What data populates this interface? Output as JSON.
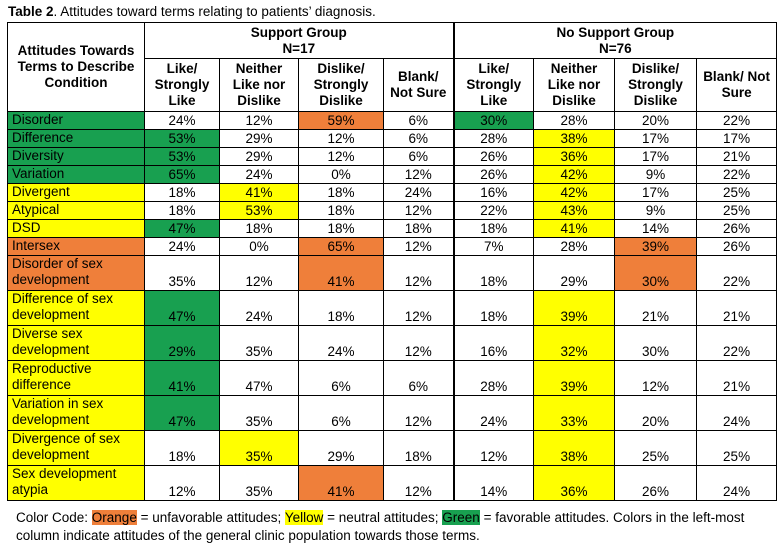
{
  "caption": {
    "label": "Table 2",
    "text": ". Attitudes toward terms relating to patients’ diagnosis."
  },
  "header": {
    "corner": "Attitudes Towards Terms to Describe Condition",
    "support_group": "Support Group",
    "support_n": "N=17",
    "no_support_group": "No Support Group",
    "no_support_n": "N=76",
    "columns": [
      "Like/ Strongly Like",
      "Neither Like nor Dislike",
      "Dislike/ Strongly Dislike",
      "Blank/ Not Sure",
      "Like/ Strongly Like",
      "Neither Like nor Dislike",
      "Dislike/ Strongly Dislike",
      "Blank/ Not Sure"
    ]
  },
  "colors": {
    "green": "#18a050",
    "yellow": "#ffff00",
    "orange": "#ef7f3a"
  },
  "rows": [
    {
      "term": "Disorder",
      "tc": "g",
      "v": [
        "24%",
        "12%",
        "59%",
        "6%",
        "30%",
        "28%",
        "20%",
        "22%"
      ],
      "c": [
        "",
        "",
        "o",
        "",
        "g",
        "",
        "",
        ""
      ]
    },
    {
      "term": "Difference",
      "tc": "g",
      "v": [
        "53%",
        "29%",
        "12%",
        "6%",
        "28%",
        "38%",
        "17%",
        "17%"
      ],
      "c": [
        "g",
        "",
        "",
        "",
        "",
        "y",
        "",
        ""
      ]
    },
    {
      "term": "Diversity",
      "tc": "g",
      "v": [
        "53%",
        "29%",
        "12%",
        "6%",
        "26%",
        "36%",
        "17%",
        "21%"
      ],
      "c": [
        "g",
        "",
        "",
        "",
        "",
        "y",
        "",
        ""
      ]
    },
    {
      "term": "Variation",
      "tc": "g",
      "v": [
        "65%",
        "24%",
        "0%",
        "12%",
        "26%",
        "42%",
        "9%",
        "22%"
      ],
      "c": [
        "g",
        "",
        "",
        "",
        "",
        "y",
        "",
        ""
      ]
    },
    {
      "term": "Divergent",
      "tc": "y",
      "v": [
        "18%",
        "41%",
        "18%",
        "24%",
        "16%",
        "42%",
        "17%",
        "25%"
      ],
      "c": [
        "",
        "y",
        "",
        "",
        "",
        "y",
        "",
        ""
      ]
    },
    {
      "term": "Atypical",
      "tc": "y",
      "v": [
        "18%",
        "53%",
        "18%",
        "12%",
        "22%",
        "43%",
        "9%",
        "25%"
      ],
      "c": [
        "",
        "y",
        "",
        "",
        "",
        "y",
        "",
        ""
      ]
    },
    {
      "term": "DSD",
      "tc": "y",
      "v": [
        "47%",
        "18%",
        "18%",
        "18%",
        "18%",
        "41%",
        "14%",
        "26%"
      ],
      "c": [
        "g",
        "",
        "",
        "",
        "",
        "y",
        "",
        ""
      ]
    },
    {
      "term": "Intersex",
      "tc": "o",
      "v": [
        "24%",
        "0%",
        "65%",
        "12%",
        "7%",
        "28%",
        "39%",
        "26%"
      ],
      "c": [
        "",
        "",
        "o",
        "",
        "",
        "",
        "o",
        ""
      ]
    },
    {
      "term": "Disorder of sex development",
      "tc": "o",
      "v": [
        "35%",
        "12%",
        "41%",
        "12%",
        "18%",
        "29%",
        "30%",
        "22%"
      ],
      "c": [
        "",
        "",
        "o",
        "",
        "",
        "",
        "o",
        ""
      ]
    },
    {
      "term": "Difference of sex development",
      "tc": "y",
      "v": [
        "47%",
        "24%",
        "18%",
        "12%",
        "18%",
        "39%",
        "21%",
        "21%"
      ],
      "c": [
        "g",
        "",
        "",
        "",
        "",
        "y",
        "",
        ""
      ]
    },
    {
      "term": "Diverse sex development",
      "tc": "y",
      "v": [
        "29%",
        "35%",
        "24%",
        "12%",
        "16%",
        "32%",
        "30%",
        "22%"
      ],
      "c": [
        "g",
        "",
        "",
        "",
        "",
        "y",
        "",
        ""
      ]
    },
    {
      "term": "Reproductive difference",
      "tc": "y",
      "v": [
        "41%",
        "47%",
        "6%",
        "6%",
        "28%",
        "39%",
        "12%",
        "21%"
      ],
      "c": [
        "g",
        "",
        "",
        "",
        "",
        "y",
        "",
        ""
      ]
    },
    {
      "term": "Variation in sex development",
      "tc": "y",
      "v": [
        "47%",
        "35%",
        "6%",
        "12%",
        "24%",
        "33%",
        "20%",
        "24%"
      ],
      "c": [
        "g",
        "",
        "",
        "",
        "",
        "y",
        "",
        ""
      ]
    },
    {
      "term": "Divergence of sex development",
      "tc": "y",
      "v": [
        "18%",
        "35%",
        "29%",
        "18%",
        "12%",
        "38%",
        "25%",
        "25%"
      ],
      "c": [
        "",
        "y",
        "",
        "",
        "",
        "y",
        "",
        ""
      ]
    },
    {
      "term": "Sex development atypia",
      "tc": "y",
      "v": [
        "12%",
        "35%",
        "41%",
        "12%",
        "14%",
        "36%",
        "26%",
        "24%"
      ],
      "c": [
        "",
        "",
        "o",
        "",
        "",
        "y",
        "",
        ""
      ]
    }
  ],
  "legend": {
    "prefix": "Color Code: ",
    "orange": "Orange",
    "orange_desc": " = unfavorable attitudes; ",
    "yellow": "Yellow",
    "yellow_desc": " = neutral attitudes; ",
    "green": "Green",
    "green_desc": " = favorable attitudes. Colors in the left-most column indicate attitudes of the general clinic population towards those terms."
  }
}
